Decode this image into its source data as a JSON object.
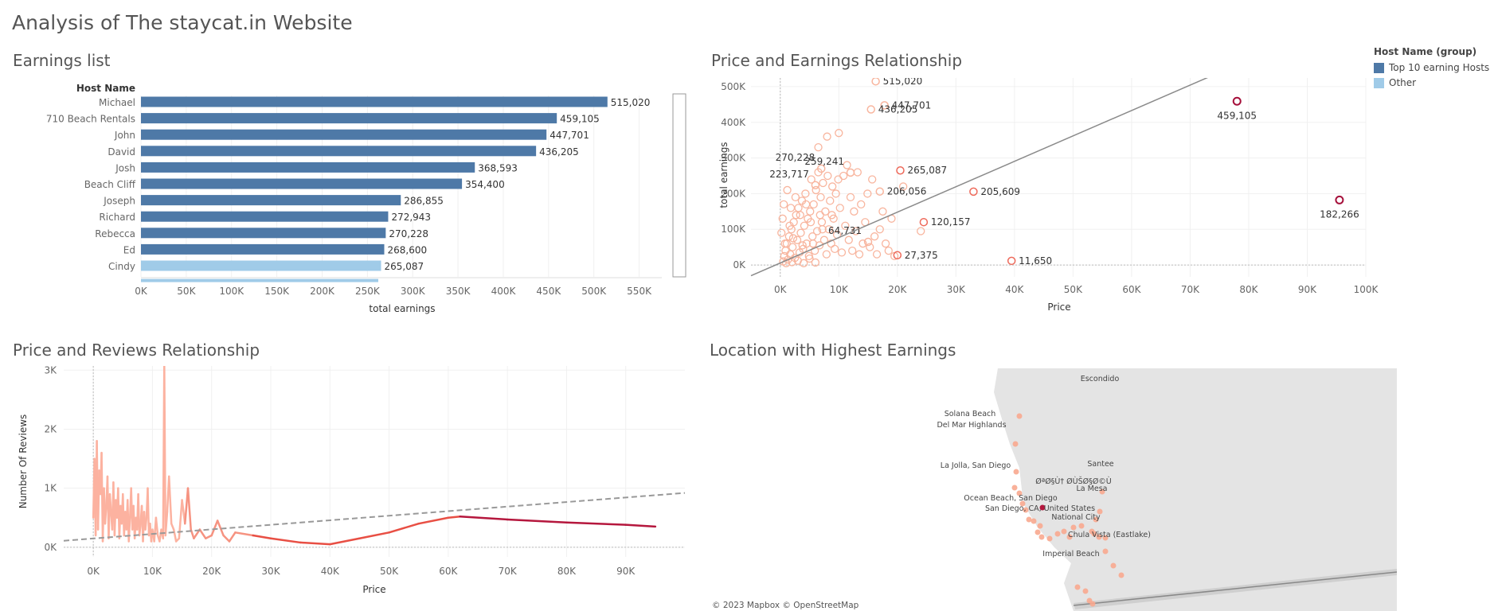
{
  "dashboard_title": "Analysis of The staycat.in Website",
  "legend": {
    "title": "Host Name (group)",
    "items": [
      {
        "label": "Top 10 earning Hosts",
        "color": "#4e79a7"
      },
      {
        "label": "Other",
        "color": "#a0cbe8"
      }
    ]
  },
  "map": {
    "title": "Location with Highest Earnings",
    "attribution": "© 2023 Mapbox © OpenStreetMap",
    "places": [
      "Escondido",
      "Solana Beach",
      "Del Mar Highlands",
      "La Jolla, San Diego",
      "Santee",
      "ØªØ§Ù† ØÙŠØ§Ø©Ù",
      "La Mesa",
      "Ocean Beach, San Diego",
      "San Diego, CA, United States",
      "National City",
      "Chula Vista (Eastlake)",
      "Imperial Beach"
    ]
  },
  "chart_data": [
    {
      "type": "bar",
      "orientation": "horizontal",
      "title": "Earnings list",
      "category_header": "Host Name",
      "xlabel": "total earnings",
      "xlim": [
        0,
        575000
      ],
      "xticks": [
        "0K",
        "50K",
        "100K",
        "150K",
        "200K",
        "250K",
        "300K",
        "350K",
        "400K",
        "450K",
        "500K",
        "550K"
      ],
      "categories": [
        "Michael",
        "710 Beach Rentals",
        "John",
        "David",
        "Josh",
        "Beach Cliff",
        "Joseph",
        "Richard",
        "Rebecca",
        "Ed",
        "Cindy"
      ],
      "values": [
        515020,
        459105,
        447701,
        436205,
        368593,
        354400,
        286855,
        272943,
        270228,
        268600,
        265087
      ],
      "value_labels": [
        "515,020",
        "459,105",
        "447,701",
        "436,205",
        "368,593",
        "354,400",
        "286,855",
        "272,943",
        "270,228",
        "268,600",
        "265,087"
      ],
      "groups": [
        "Top 10 earning Hosts",
        "Top 10 earning Hosts",
        "Top 10 earning Hosts",
        "Top 10 earning Hosts",
        "Top 10 earning Hosts",
        "Top 10 earning Hosts",
        "Top 10 earning Hosts",
        "Top 10 earning Hosts",
        "Top 10 earning Hosts",
        "Top 10 earning Hosts",
        "Other"
      ]
    },
    {
      "type": "scatter",
      "title": "Price and Earnings Relationship",
      "xlabel": "Price",
      "ylabel": "total earnings",
      "xlim": [
        -5000,
        100000
      ],
      "ylim": [
        -40000,
        540000
      ],
      "xticks": [
        0,
        10000,
        20000,
        30000,
        40000,
        50000,
        60000,
        70000,
        80000,
        90000,
        100000
      ],
      "xtick_labels": [
        "0K",
        "10K",
        "20K",
        "30K",
        "40K",
        "50K",
        "60K",
        "70K",
        "80K",
        "90K",
        "100K"
      ],
      "yticks": [
        0,
        100000,
        200000,
        300000,
        400000,
        500000
      ],
      "ytick_labels": [
        "0K",
        "100K",
        "200K",
        "300K",
        "400K",
        "500K"
      ],
      "trend_line": {
        "x": [
          -5000,
          75000
        ],
        "y": [
          -30000,
          540000
        ]
      },
      "labeled_points": [
        {
          "x": 16300,
          "y": 515020,
          "label": "515,020"
        },
        {
          "x": 17800,
          "y": 447701,
          "label": "447,701"
        },
        {
          "x": 15500,
          "y": 436205,
          "label": "436,205"
        },
        {
          "x": 78000,
          "y": 459105,
          "label": "459,105"
        },
        {
          "x": 7000,
          "y": 270228,
          "label": "270,228"
        },
        {
          "x": 6000,
          "y": 223717,
          "label": "223,717"
        },
        {
          "x": 12000,
          "y": 259241,
          "label": "259,241"
        },
        {
          "x": 20500,
          "y": 265087,
          "label": "265,087"
        },
        {
          "x": 17000,
          "y": 206056,
          "label": "206,056"
        },
        {
          "x": 33000,
          "y": 205609,
          "label": "205,609"
        },
        {
          "x": 24500,
          "y": 120157,
          "label": "120,157"
        },
        {
          "x": 15000,
          "y": 64731,
          "label": "64,731"
        },
        {
          "x": 20000,
          "y": 27375,
          "label": "27,375"
        },
        {
          "x": 39500,
          "y": 11650,
          "label": "11,650"
        },
        {
          "x": 95500,
          "y": 182266,
          "label": "182,266"
        }
      ],
      "points": [
        [
          500,
          10000
        ],
        [
          700,
          25000
        ],
        [
          900,
          40000
        ],
        [
          1100,
          60000
        ],
        [
          1300,
          15000
        ],
        [
          1500,
          80000
        ],
        [
          1700,
          30000
        ],
        [
          1900,
          100000
        ],
        [
          2100,
          50000
        ],
        [
          2300,
          120000
        ],
        [
          2500,
          20000
        ],
        [
          2700,
          140000
        ],
        [
          2900,
          70000
        ],
        [
          3100,
          160000
        ],
        [
          3300,
          35000
        ],
        [
          3500,
          90000
        ],
        [
          3700,
          180000
        ],
        [
          3900,
          45000
        ],
        [
          4100,
          110000
        ],
        [
          4300,
          200000
        ],
        [
          4500,
          60000
        ],
        [
          4700,
          130000
        ],
        [
          4900,
          25000
        ],
        [
          5100,
          150000
        ],
        [
          5300,
          240000
        ],
        [
          5500,
          80000
        ],
        [
          5700,
          170000
        ],
        [
          5900,
          40000
        ],
        [
          6100,
          210000
        ],
        [
          6300,
          95000
        ],
        [
          6500,
          260000
        ],
        [
          6700,
          55000
        ],
        [
          6900,
          190000
        ],
        [
          7100,
          120000
        ],
        [
          7300,
          230000
        ],
        [
          7500,
          70000
        ],
        [
          7700,
          150000
        ],
        [
          7900,
          30000
        ],
        [
          8100,
          250000
        ],
        [
          8300,
          100000
        ],
        [
          8500,
          180000
        ],
        [
          8700,
          60000
        ],
        [
          8900,
          220000
        ],
        [
          9100,
          130000
        ],
        [
          9300,
          45000
        ],
        [
          9500,
          200000
        ],
        [
          9700,
          85000
        ],
        [
          9900,
          240000
        ],
        [
          10200,
          160000
        ],
        [
          10500,
          35000
        ],
        [
          10800,
          250000
        ],
        [
          11100,
          110000
        ],
        [
          11400,
          280000
        ],
        [
          11700,
          70000
        ],
        [
          12000,
          190000
        ],
        [
          12300,
          40000
        ],
        [
          12600,
          150000
        ],
        [
          12900,
          95000
        ],
        [
          13200,
          260000
        ],
        [
          13500,
          30000
        ],
        [
          13800,
          170000
        ],
        [
          14100,
          60000
        ],
        [
          14500,
          120000
        ],
        [
          14900,
          200000
        ],
        [
          15300,
          50000
        ],
        [
          15700,
          240000
        ],
        [
          16100,
          80000
        ],
        [
          16500,
          30000
        ],
        [
          17000,
          100000
        ],
        [
          17500,
          150000
        ],
        [
          18000,
          60000
        ],
        [
          18500,
          40000
        ],
        [
          19000,
          130000
        ],
        [
          19500,
          25000
        ],
        [
          21000,
          220000
        ],
        [
          24000,
          95000
        ],
        [
          8000,
          360000
        ],
        [
          6500,
          330000
        ],
        [
          10000,
          370000
        ],
        [
          1000,
          5000
        ],
        [
          2000,
          8000
        ],
        [
          3000,
          12000
        ],
        [
          4000,
          5000
        ],
        [
          5000,
          18000
        ],
        [
          6000,
          7000
        ],
        [
          200,
          90000
        ],
        [
          400,
          130000
        ],
        [
          600,
          170000
        ],
        [
          800,
          60000
        ],
        [
          1200,
          210000
        ],
        [
          1600,
          110000
        ],
        [
          1800,
          160000
        ],
        [
          2200,
          75000
        ],
        [
          2600,
          190000
        ],
        [
          3400,
          140000
        ],
        [
          3800,
          55000
        ],
        [
          4400,
          170000
        ],
        [
          5200,
          120000
        ],
        [
          5600,
          60000
        ],
        [
          6800,
          140000
        ],
        [
          7200,
          100000
        ],
        [
          8800,
          140000
        ]
      ],
      "dark_points": [
        [
          78000,
          459105
        ],
        [
          95500,
          182266
        ]
      ]
    },
    {
      "type": "line",
      "title": "Price and Reviews Relationship",
      "xlabel": "Price",
      "ylabel": "Number Of Reviews",
      "xlim": [
        -5000,
        100000
      ],
      "ylim": [
        -150,
        3300
      ],
      "xticks": [
        0,
        10000,
        20000,
        30000,
        40000,
        50000,
        60000,
        70000,
        80000,
        90000
      ],
      "xtick_labels": [
        "0K",
        "10K",
        "20K",
        "30K",
        "40K",
        "50K",
        "60K",
        "70K",
        "80K",
        "90K"
      ],
      "yticks": [
        0,
        1000,
        2000,
        3000
      ],
      "ytick_labels": [
        "0K",
        "1K",
        "2K",
        "3K"
      ],
      "x": [
        0,
        200,
        400,
        600,
        800,
        1000,
        1200,
        1400,
        1600,
        1800,
        2000,
        2200,
        2400,
        2600,
        2800,
        3000,
        3200,
        3400,
        3600,
        3800,
        4000,
        4200,
        4400,
        4600,
        4800,
        5000,
        5200,
        5400,
        5600,
        5800,
        6000,
        6200,
        6400,
        6600,
        6800,
        7000,
        7200,
        7400,
        7600,
        7800,
        8000,
        8200,
        8400,
        8600,
        8800,
        9000,
        9200,
        9400,
        9600,
        9800,
        10000,
        10300,
        10600,
        10900,
        11200,
        11500,
        11800,
        12000,
        12200,
        12500,
        12800,
        13200,
        13600,
        14000,
        14500,
        15000,
        15500,
        16000,
        16500,
        17000,
        18000,
        19000,
        20000,
        21000,
        22000,
        23000,
        24000,
        27000,
        30000,
        35000,
        40000,
        45000,
        50000,
        55000,
        60000,
        62000,
        70000,
        80000,
        90000,
        95000
      ],
      "y": [
        500,
        1500,
        200,
        1800,
        300,
        1300,
        900,
        1600,
        100,
        1000,
        400,
        700,
        1200,
        150,
        900,
        600,
        300,
        1100,
        200,
        800,
        500,
        1000,
        150,
        700,
        400,
        900,
        200,
        600,
        300,
        800,
        100,
        500,
        1000,
        300,
        700,
        150,
        500,
        300,
        900,
        200,
        400,
        700,
        100,
        600,
        300,
        500,
        1000,
        200,
        400,
        100,
        300,
        100,
        500,
        200,
        100,
        300,
        150,
        3150,
        200,
        600,
        1200,
        400,
        300,
        100,
        150,
        800,
        400,
        1000,
        300,
        150,
        300,
        150,
        200,
        450,
        200,
        100,
        250,
        200,
        150,
        80,
        50,
        150,
        250,
        400,
        500,
        520,
        470,
        420,
        380,
        350
      ],
      "trend_line": {
        "x": [
          -5000,
          100000
        ],
        "y": [
          110,
          920
        ]
      }
    }
  ]
}
